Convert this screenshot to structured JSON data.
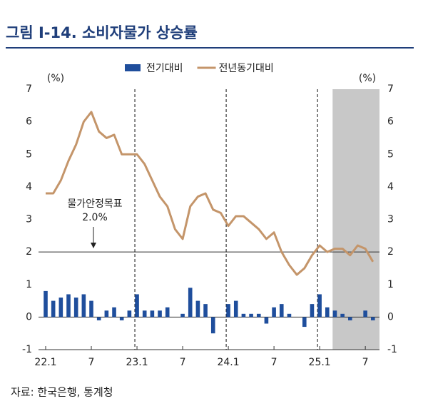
{
  "chart_data": {
    "type": "bar-line",
    "title": "그림 I-14. 소비자물가 상승률",
    "y_label": "(%)",
    "y2_label": "(%)",
    "source": "자료: 한국은행, 통계청",
    "categories": [
      "22.1",
      null,
      null,
      null,
      null,
      null,
      "7",
      null,
      null,
      null,
      null,
      null,
      "23.1",
      null,
      null,
      null,
      null,
      null,
      "7",
      null,
      null,
      null,
      null,
      null,
      "24.1",
      null,
      null,
      null,
      null,
      null,
      "7",
      null,
      null,
      null,
      null,
      null,
      "25.1",
      null,
      null,
      null,
      null,
      null,
      "7",
      null
    ],
    "series": [
      {
        "name": "전기대비",
        "type": "bar",
        "color": "#1f4e9c",
        "values": [
          0.8,
          0.5,
          0.6,
          0.7,
          0.6,
          0.7,
          0.5,
          -0.1,
          0.2,
          0.3,
          -0.1,
          0.2,
          0.7,
          0.2,
          0.2,
          0.2,
          0.3,
          0.0,
          0.1,
          0.9,
          0.5,
          0.4,
          -0.5,
          0.0,
          0.4,
          0.5,
          0.1,
          0.1,
          0.1,
          -0.2,
          0.3,
          0.4,
          0.1,
          0.0,
          -0.3,
          0.4,
          0.7,
          0.3,
          0.2,
          0.1,
          -0.1,
          0.0,
          0.2,
          -0.1
        ]
      },
      {
        "name": "전년동기대비",
        "type": "line",
        "color": "#c4956a",
        "values": [
          3.8,
          3.8,
          4.2,
          4.8,
          5.3,
          6.0,
          6.3,
          5.7,
          5.5,
          5.6,
          5.0,
          5.0,
          5.0,
          4.7,
          4.2,
          3.7,
          3.4,
          2.7,
          2.4,
          3.4,
          3.7,
          3.8,
          3.3,
          3.2,
          2.8,
          3.1,
          3.1,
          2.9,
          2.7,
          2.4,
          2.6,
          2.0,
          1.6,
          1.3,
          1.5,
          1.9,
          2.2,
          2.0,
          2.1,
          2.1,
          1.9,
          2.2,
          2.1,
          1.7
        ]
      }
    ],
    "ylim": [
      -1,
      7
    ],
    "yticks": [
      -1,
      0,
      1,
      2,
      3,
      4,
      5,
      6,
      7
    ],
    "y2lim": [
      -1,
      7
    ],
    "y2ticks": [
      -1,
      0,
      1,
      2,
      3,
      4,
      5,
      6,
      7
    ],
    "target": {
      "text": "물가안정목표",
      "value": 2,
      "label": "2.0%"
    },
    "legend": "top"
  }
}
